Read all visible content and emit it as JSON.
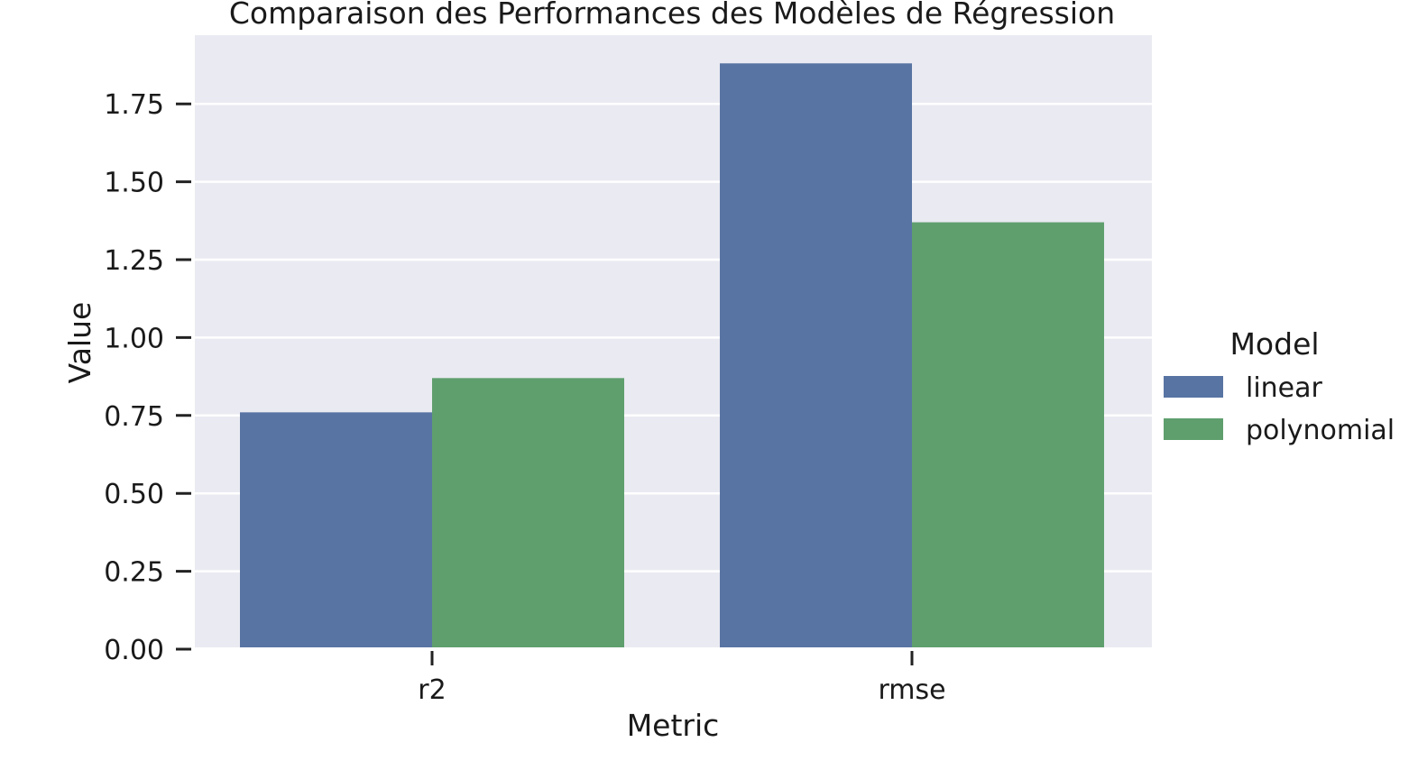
{
  "chart_data": {
    "type": "bar",
    "title": "Comparaison des Performances des Modèles de Régression",
    "xlabel": "Metric",
    "ylabel": "Value",
    "categories": [
      "r2",
      "rmse"
    ],
    "series": [
      {
        "name": "linear",
        "values": [
          0.76,
          1.88
        ],
        "color": "#5874a3"
      },
      {
        "name": "polynomial",
        "values": [
          0.87,
          1.37
        ],
        "color": "#5f9f6e"
      }
    ],
    "ylim": [
      0,
      1.87
    ],
    "yticks": [
      0.0,
      0.25,
      0.5,
      0.75,
      1.0,
      1.25,
      1.5,
      1.75
    ],
    "ytick_labels": [
      "0.00",
      "0.25",
      "0.50",
      "0.75",
      "1.00",
      "1.25",
      "1.50",
      "1.75"
    ],
    "grid": true,
    "background": "#eaeaf2",
    "legend": {
      "title": "Model",
      "placement": "right"
    }
  }
}
